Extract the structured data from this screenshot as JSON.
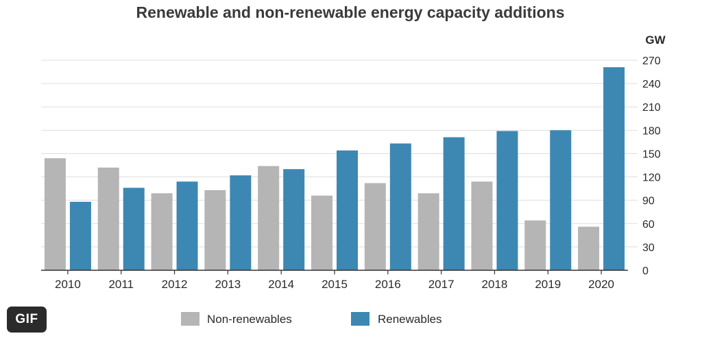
{
  "chart_data": {
    "type": "bar",
    "title": "Renewable and non-renewable energy capacity additions",
    "unit_label": "GW",
    "categories": [
      "2010",
      "2011",
      "2012",
      "2013",
      "2014",
      "2015",
      "2016",
      "2017",
      "2018",
      "2019",
      "2020"
    ],
    "series": [
      {
        "name": "Non-renewables",
        "color": "#b5b5b5",
        "values": [
          144,
          132,
          99,
          103,
          134,
          96,
          112,
          99,
          114,
          64,
          56
        ]
      },
      {
        "name": "Renewables",
        "color": "#3d87b3",
        "values": [
          88,
          106,
          114,
          122,
          130,
          154,
          163,
          171,
          179,
          180,
          261
        ]
      }
    ],
    "ylim": [
      0,
      270
    ],
    "yticks": [
      0,
      30,
      60,
      90,
      120,
      150,
      180,
      210,
      240,
      270
    ],
    "y_axis_side": "right",
    "grid": true,
    "legend_position": "bottom-center"
  },
  "badge": {
    "label": "GIF"
  }
}
